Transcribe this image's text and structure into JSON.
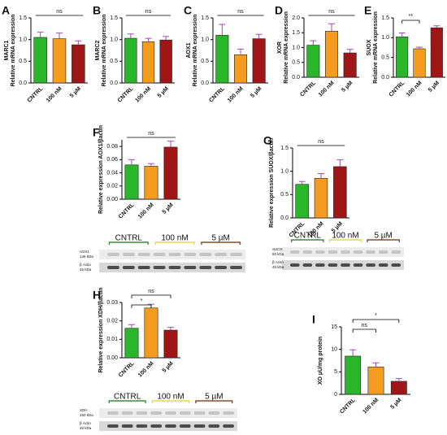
{
  "chart_data": [
    {
      "type": "bar",
      "panel": "A",
      "ylabel": [
        "MARC1",
        "Relative mRNA expression"
      ],
      "categories": [
        "CNTRL",
        "100 nM",
        "5 µM"
      ],
      "values": [
        1.05,
        1.02,
        0.88
      ],
      "errors": [
        0.12,
        0.13,
        0.09
      ],
      "colors": [
        "#2bb52b",
        "#f39c1f",
        "#a01616"
      ],
      "ylim": [
        0,
        1.5
      ],
      "yticks": [
        {
          "value": 0,
          "label": "0.0"
        },
        0.5,
        {
          "value": 1,
          "label": "1.0"
        },
        1.5
      ],
      "annotations": [
        "ns"
      ]
    },
    {
      "type": "bar",
      "panel": "B",
      "ylabel": [
        "MARC2",
        "Relative mRNA expression"
      ],
      "categories": [
        "CNTRL",
        "100 nM",
        "5 µM"
      ],
      "values": [
        1.03,
        0.95,
        0.99
      ],
      "errors": [
        0.1,
        0.08,
        0.08
      ],
      "colors": [
        "#2bb52b",
        "#f39c1f",
        "#a01616"
      ],
      "ylim": [
        0,
        1.5
      ],
      "yticks": [
        {
          "value": 0,
          "label": "0.0"
        },
        0.5,
        {
          "value": 1,
          "label": "1.0"
        },
        1.5
      ],
      "annotations": [
        "ns"
      ]
    },
    {
      "type": "bar",
      "panel": "C",
      "ylabel": [
        "AOX1",
        "Relative mRNA expression"
      ],
      "categories": [
        "CNTRL",
        "100 nM",
        "5 µM"
      ],
      "values": [
        1.1,
        0.65,
        1.02
      ],
      "errors": [
        0.25,
        0.13,
        0.1
      ],
      "colors": [
        "#2bb52b",
        "#f39c1f",
        "#a01616"
      ],
      "ylim": [
        0,
        1.5
      ],
      "yticks": [
        {
          "value": 0,
          "label": "0.0"
        },
        0.5,
        {
          "value": 1,
          "label": "1.0"
        },
        1.5
      ],
      "annotations": [
        "ns"
      ]
    },
    {
      "type": "bar",
      "panel": "D",
      "ylabel": [
        "XOR",
        "Relative mRNA expression"
      ],
      "categories": [
        "CNTRL",
        "100 nM",
        "5 µM"
      ],
      "values": [
        1.08,
        1.55,
        0.82
      ],
      "errors": [
        0.15,
        0.25,
        0.12
      ],
      "colors": [
        "#2bb52b",
        "#f39c1f",
        "#a01616"
      ],
      "ylim": [
        0,
        2
      ],
      "yticks": [
        {
          "value": 0,
          "label": "0.0"
        },
        0.5,
        {
          "value": 1,
          "label": "1.0"
        },
        1.5,
        {
          "value": 2,
          "label": "2.0"
        }
      ],
      "annotations": [
        "ns"
      ]
    },
    {
      "type": "bar",
      "panel": "E",
      "ylabel": [
        "SUOX",
        "Relative mRNA expression"
      ],
      "categories": [
        "CNTRL",
        "100 nM",
        "5 µM"
      ],
      "values": [
        1.02,
        0.72,
        1.25
      ],
      "errors": [
        0.1,
        0.04,
        0.05
      ],
      "colors": [
        "#2bb52b",
        "#f39c1f",
        "#a01616"
      ],
      "ylim": [
        0,
        1.5
      ],
      "yticks": [
        {
          "value": 0,
          "label": "0.0"
        },
        0.5,
        {
          "value": 1,
          "label": "1.0"
        },
        1.5
      ],
      "annotations": [
        "**"
      ]
    },
    {
      "type": "bar",
      "panel": "F",
      "ylabel": [
        "Relative expression AOX1/βactin"
      ],
      "categories": [
        "CNTRL",
        "100 nM",
        "5 µM"
      ],
      "values": [
        0.052,
        0.05,
        0.079
      ],
      "errors": [
        0.008,
        0.004,
        0.009
      ],
      "colors": [
        "#2bb52b",
        "#f39c1f",
        "#a01616"
      ],
      "ylim": [
        0,
        0.09
      ],
      "yticks": [
        {
          "value": 0,
          "label": "0.00"
        },
        {
          "value": 0.02,
          "label": "0.02"
        },
        {
          "value": 0.04,
          "label": "0.04"
        },
        {
          "value": 0.06,
          "label": "0.06"
        },
        {
          "value": 0.08,
          "label": "0.08"
        }
      ],
      "annotations": [
        "ns"
      ]
    },
    {
      "type": "bar",
      "panel": "G",
      "ylabel": [
        "Relative expression SUOX/βactin"
      ],
      "categories": [
        "CNTRL",
        "100 nM",
        "5 µM"
      ],
      "values": [
        0.72,
        0.85,
        1.1
      ],
      "errors": [
        0.06,
        0.1,
        0.15
      ],
      "colors": [
        "#2bb52b",
        "#f39c1f",
        "#a01616"
      ],
      "ylim": [
        0,
        1.5
      ],
      "yticks": [
        {
          "value": 0,
          "label": "0.0"
        },
        0.5,
        {
          "value": 1,
          "label": "1.0"
        },
        1.5
      ],
      "annotations": [
        "ns"
      ]
    },
    {
      "type": "bar",
      "panel": "H",
      "ylabel": [
        "Relative expression XDH/βactin"
      ],
      "categories": [
        "CNTRL",
        "100 nM",
        "5 µM"
      ],
      "values": [
        0.016,
        0.027,
        0.015
      ],
      "errors": [
        0.002,
        0.002,
        0.0015
      ],
      "colors": [
        "#2bb52b",
        "#f39c1f",
        "#a01616"
      ],
      "ylim": [
        0,
        0.03
      ],
      "yticks": [
        {
          "value": 0,
          "label": "0.00"
        },
        {
          "value": 0.01,
          "label": "0.01"
        },
        {
          "value": 0.02,
          "label": "0.02"
        },
        {
          "value": 0.03,
          "label": "0.03"
        }
      ],
      "annotations": [
        "*",
        "ns"
      ]
    },
    {
      "type": "bar",
      "panel": "I",
      "ylabel": [
        "XO µU/mg protein"
      ],
      "categories": [
        "CNTRL",
        "100 nM",
        "5 µM"
      ],
      "values": [
        8.5,
        6.1,
        2.9
      ],
      "errors": [
        1.4,
        0.9,
        0.6
      ],
      "colors": [
        "#2bb52b",
        "#f39c1f",
        "#a01616"
      ],
      "ylim": [
        0,
        15
      ],
      "yticks": [
        0,
        5,
        10,
        15
      ],
      "annotations": [
        "ns",
        "*"
      ]
    }
  ],
  "blots": [
    {
      "lanes": [
        "CNTRL",
        "100 nM",
        "5 µM"
      ],
      "rows": [
        [
          "AOX1",
          "146 kDa"
        ],
        [
          "β Actin",
          "45 kDa"
        ]
      ]
    },
    {
      "lanes": [
        "CNTRL",
        "100 nM",
        "5 µM"
      ],
      "rows": [
        [
          "SUOX",
          "60 kDa"
        ],
        [
          "β Actin",
          "45 kDa"
        ]
      ]
    },
    {
      "lanes": [
        "CNTRL",
        "100 nM",
        "5 µM"
      ],
      "rows": [
        [
          "XDH",
          "150 kDa"
        ],
        [
          "β Actin",
          "45 kDa"
        ]
      ]
    }
  ]
}
